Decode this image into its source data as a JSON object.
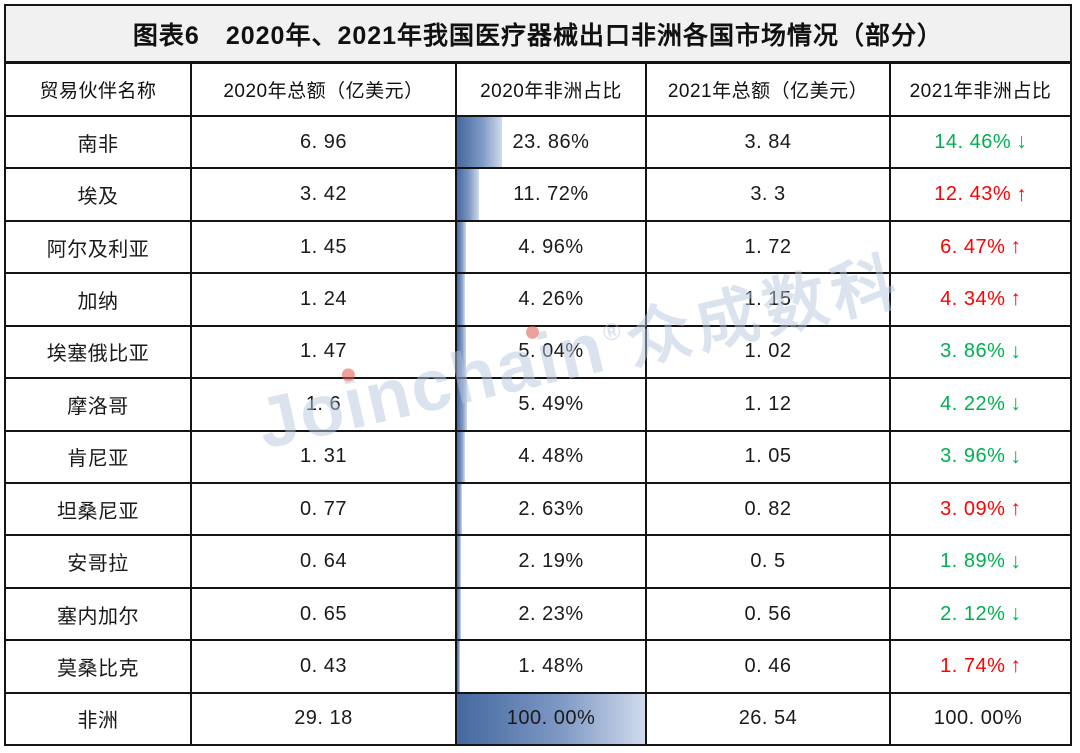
{
  "colors": {
    "border": "#141414",
    "title_bg": "#f1f1f1",
    "increase_red": "#ff0000",
    "decrease_green": "#00b050",
    "databar_start": "#44689f",
    "databar_end": "#cfdaec",
    "watermark": "rgba(183,198,223,0.9)",
    "watermark_dot": "#e05548"
  },
  "trend_icons": {
    "up": "↑",
    "down": "↓",
    "none": ""
  },
  "watermark": {
    "latin": "Joinchain",
    "reg": "®",
    "cn": "众成数科"
  },
  "chart_data": {
    "type": "table",
    "title": "图表6　2020年、2021年我国医疗器械出口非洲各国市场情况（部分）",
    "columns": [
      "贸易伙伴名称",
      "2020年总额（亿美元）",
      "2020年非洲占比",
      "2021年总额（亿美元）",
      "2021年非洲占比"
    ],
    "databar_column": "2020年非洲占比",
    "databar_max": 100,
    "rows": [
      {
        "partner": "南非",
        "total_2020": "6. 96",
        "share_2020": "23. 86%",
        "share_2020_value": 23.86,
        "total_2021": "3. 84",
        "share_2021": "14. 46%",
        "share_2021_value": 14.46,
        "trend": "down"
      },
      {
        "partner": "埃及",
        "total_2020": "3. 42",
        "share_2020": "11. 72%",
        "share_2020_value": 11.72,
        "total_2021": "3. 3",
        "share_2021": "12. 43%",
        "share_2021_value": 12.43,
        "trend": "up"
      },
      {
        "partner": "阿尔及利亚",
        "total_2020": "1. 45",
        "share_2020": "4. 96%",
        "share_2020_value": 4.96,
        "total_2021": "1. 72",
        "share_2021": "6. 47%",
        "share_2021_value": 6.47,
        "trend": "up"
      },
      {
        "partner": "加纳",
        "total_2020": "1. 24",
        "share_2020": "4. 26%",
        "share_2020_value": 4.26,
        "total_2021": "1. 15",
        "share_2021": "4. 34%",
        "share_2021_value": 4.34,
        "trend": "up"
      },
      {
        "partner": "埃塞俄比亚",
        "total_2020": "1. 47",
        "share_2020": "5. 04%",
        "share_2020_value": 5.04,
        "total_2021": "1. 02",
        "share_2021": "3. 86%",
        "share_2021_value": 3.86,
        "trend": "down"
      },
      {
        "partner": "摩洛哥",
        "total_2020": "1. 6",
        "share_2020": "5. 49%",
        "share_2020_value": 5.49,
        "total_2021": "1. 12",
        "share_2021": "4. 22%",
        "share_2021_value": 4.22,
        "trend": "down"
      },
      {
        "partner": "肯尼亚",
        "total_2020": "1. 31",
        "share_2020": "4. 48%",
        "share_2020_value": 4.48,
        "total_2021": "1. 05",
        "share_2021": "3. 96%",
        "share_2021_value": 3.96,
        "trend": "down"
      },
      {
        "partner": "坦桑尼亚",
        "total_2020": "0. 77",
        "share_2020": "2. 63%",
        "share_2020_value": 2.63,
        "total_2021": "0. 82",
        "share_2021": "3. 09%",
        "share_2021_value": 3.09,
        "trend": "up"
      },
      {
        "partner": "安哥拉",
        "total_2020": "0. 64",
        "share_2020": "2. 19%",
        "share_2020_value": 2.19,
        "total_2021": "0. 5",
        "share_2021": "1. 89%",
        "share_2021_value": 1.89,
        "trend": "down"
      },
      {
        "partner": "塞内加尔",
        "total_2020": "0. 65",
        "share_2020": "2. 23%",
        "share_2020_value": 2.23,
        "total_2021": "0. 56",
        "share_2021": "2. 12%",
        "share_2021_value": 2.12,
        "trend": "down"
      },
      {
        "partner": "莫桑比克",
        "total_2020": "0. 43",
        "share_2020": "1. 48%",
        "share_2020_value": 1.48,
        "total_2021": "0. 46",
        "share_2021": "1. 74%",
        "share_2021_value": 1.74,
        "trend": "up"
      },
      {
        "partner": "非洲",
        "total_2020": "29. 18",
        "share_2020": "100. 00%",
        "share_2020_value": 100,
        "total_2021": "26. 54",
        "share_2021": "100. 00%",
        "share_2021_value": 100,
        "trend": "none"
      }
    ]
  }
}
